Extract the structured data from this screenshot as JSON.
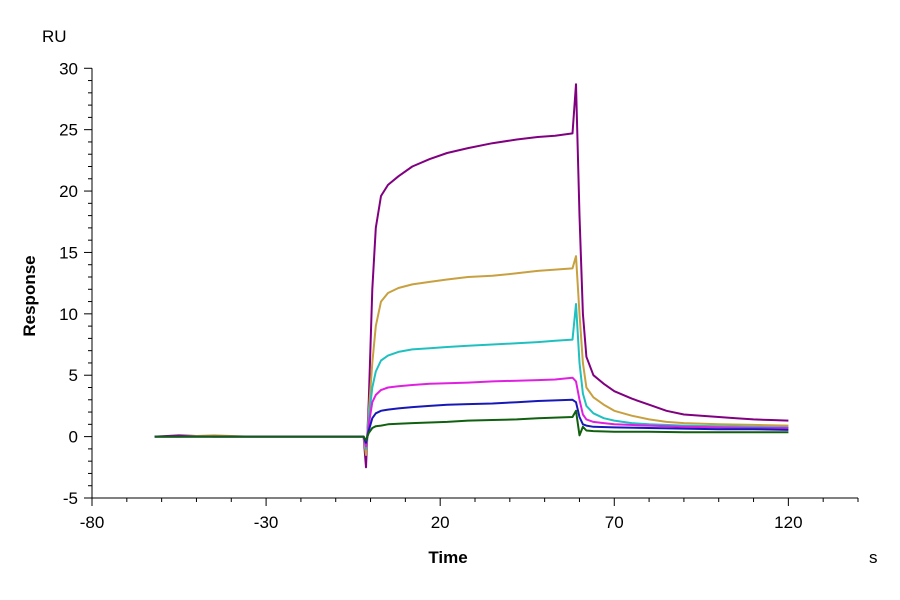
{
  "chart_data": {
    "type": "line",
    "title": "",
    "xlabel": "Time",
    "ylabel": "Response",
    "x_unit": "s",
    "y_unit": "RU",
    "xlim": [
      -80,
      140
    ],
    "ylim": [
      -5,
      31
    ],
    "x_ticks": [
      -80,
      -30,
      20,
      70,
      120
    ],
    "y_ticks": [
      -5,
      0,
      5,
      10,
      15,
      20,
      25,
      30
    ],
    "grid": false,
    "legend": "none",
    "series": [
      {
        "color": "#800080",
        "points": [
          [
            -62,
            0
          ],
          [
            -55,
            0.1
          ],
          [
            -45,
            0
          ],
          [
            -35,
            0
          ],
          [
            -25,
            0
          ],
          [
            -15,
            0
          ],
          [
            -6,
            0
          ],
          [
            -2,
            0
          ],
          [
            -1.3,
            -2.5
          ],
          [
            -0.5,
            3
          ],
          [
            0.5,
            12
          ],
          [
            1.5,
            17
          ],
          [
            3,
            19.6
          ],
          [
            5,
            20.5
          ],
          [
            8,
            21.2
          ],
          [
            12,
            22
          ],
          [
            17,
            22.6
          ],
          [
            22,
            23.1
          ],
          [
            28,
            23.5
          ],
          [
            35,
            23.9
          ],
          [
            42,
            24.2
          ],
          [
            48,
            24.4
          ],
          [
            53,
            24.5
          ],
          [
            58,
            24.7
          ],
          [
            59,
            28.7
          ],
          [
            60,
            18
          ],
          [
            61,
            10
          ],
          [
            62,
            6.5
          ],
          [
            64,
            5
          ],
          [
            67,
            4.3
          ],
          [
            70,
            3.7
          ],
          [
            75,
            3.1
          ],
          [
            80,
            2.6
          ],
          [
            85,
            2.1
          ],
          [
            90,
            1.8
          ],
          [
            95,
            1.7
          ],
          [
            100,
            1.6
          ],
          [
            105,
            1.5
          ],
          [
            110,
            1.4
          ],
          [
            115,
            1.35
          ],
          [
            120,
            1.3
          ]
        ]
      },
      {
        "color": "#C8A040",
        "points": [
          [
            -62,
            0
          ],
          [
            -55,
            0
          ],
          [
            -45,
            0.1
          ],
          [
            -35,
            0
          ],
          [
            -25,
            0
          ],
          [
            -15,
            0
          ],
          [
            -6,
            0
          ],
          [
            -2,
            0
          ],
          [
            -1.3,
            -1.5
          ],
          [
            -0.5,
            2
          ],
          [
            0.5,
            6
          ],
          [
            1.5,
            9
          ],
          [
            3,
            11
          ],
          [
            5,
            11.7
          ],
          [
            8,
            12.1
          ],
          [
            12,
            12.4
          ],
          [
            17,
            12.6
          ],
          [
            22,
            12.8
          ],
          [
            28,
            13
          ],
          [
            35,
            13.1
          ],
          [
            42,
            13.3
          ],
          [
            48,
            13.5
          ],
          [
            53,
            13.6
          ],
          [
            58,
            13.7
          ],
          [
            59,
            14.7
          ],
          [
            60,
            10
          ],
          [
            61,
            6
          ],
          [
            62,
            4
          ],
          [
            64,
            3.2
          ],
          [
            67,
            2.6
          ],
          [
            70,
            2.1
          ],
          [
            75,
            1.7
          ],
          [
            80,
            1.4
          ],
          [
            85,
            1.2
          ],
          [
            90,
            1.1
          ],
          [
            100,
            1
          ],
          [
            110,
            0.95
          ],
          [
            120,
            0.9
          ]
        ]
      },
      {
        "color": "#20C0C0",
        "points": [
          [
            -62,
            0
          ],
          [
            -55,
            0
          ],
          [
            -45,
            0
          ],
          [
            -35,
            0
          ],
          [
            -25,
            0
          ],
          [
            -15,
            0
          ],
          [
            -6,
            0
          ],
          [
            -2,
            0
          ],
          [
            -1.3,
            -1
          ],
          [
            -0.5,
            1.5
          ],
          [
            0.5,
            4
          ],
          [
            1.5,
            5.3
          ],
          [
            3,
            6.2
          ],
          [
            5,
            6.6
          ],
          [
            8,
            6.9
          ],
          [
            12,
            7.1
          ],
          [
            17,
            7.2
          ],
          [
            22,
            7.3
          ],
          [
            28,
            7.4
          ],
          [
            35,
            7.5
          ],
          [
            42,
            7.6
          ],
          [
            48,
            7.7
          ],
          [
            53,
            7.8
          ],
          [
            58,
            7.9
          ],
          [
            59,
            10.8
          ],
          [
            60,
            6
          ],
          [
            61,
            3.5
          ],
          [
            62,
            2.5
          ],
          [
            64,
            1.9
          ],
          [
            67,
            1.5
          ],
          [
            70,
            1.3
          ],
          [
            75,
            1.1
          ],
          [
            80,
            1
          ],
          [
            90,
            0.9
          ],
          [
            100,
            0.85
          ],
          [
            110,
            0.8
          ],
          [
            120,
            0.75
          ]
        ]
      },
      {
        "color": "#E020E0",
        "points": [
          [
            -62,
            0
          ],
          [
            -55,
            0
          ],
          [
            -45,
            0
          ],
          [
            -35,
            0
          ],
          [
            -25,
            0
          ],
          [
            -15,
            0
          ],
          [
            -6,
            0
          ],
          [
            -2,
            0
          ],
          [
            -1.3,
            -0.8
          ],
          [
            -0.5,
            1
          ],
          [
            0.5,
            2.8
          ],
          [
            1.5,
            3.4
          ],
          [
            3,
            3.8
          ],
          [
            5,
            4
          ],
          [
            8,
            4.1
          ],
          [
            12,
            4.2
          ],
          [
            17,
            4.3
          ],
          [
            22,
            4.35
          ],
          [
            28,
            4.4
          ],
          [
            35,
            4.5
          ],
          [
            42,
            4.55
          ],
          [
            48,
            4.6
          ],
          [
            53,
            4.65
          ],
          [
            58,
            4.8
          ],
          [
            59,
            4.5
          ],
          [
            60,
            3
          ],
          [
            61,
            1.8
          ],
          [
            62,
            1.4
          ],
          [
            64,
            1.2
          ],
          [
            67,
            1.1
          ],
          [
            70,
            1
          ],
          [
            80,
            0.9
          ],
          [
            90,
            0.8
          ],
          [
            100,
            0.75
          ],
          [
            110,
            0.7
          ],
          [
            120,
            0.7
          ]
        ]
      },
      {
        "color": "#1818B8",
        "points": [
          [
            -62,
            0
          ],
          [
            -55,
            0
          ],
          [
            -45,
            0
          ],
          [
            -35,
            0
          ],
          [
            -25,
            0
          ],
          [
            -15,
            0
          ],
          [
            -6,
            0
          ],
          [
            -2,
            0
          ],
          [
            -1.3,
            -0.5
          ],
          [
            -0.5,
            0.5
          ],
          [
            0.5,
            1.5
          ],
          [
            1.5,
            1.9
          ],
          [
            3,
            2.1
          ],
          [
            5,
            2.2
          ],
          [
            8,
            2.3
          ],
          [
            12,
            2.4
          ],
          [
            17,
            2.5
          ],
          [
            22,
            2.6
          ],
          [
            28,
            2.65
          ],
          [
            35,
            2.7
          ],
          [
            42,
            2.8
          ],
          [
            48,
            2.9
          ],
          [
            53,
            2.95
          ],
          [
            58,
            3
          ],
          [
            59,
            2.8
          ],
          [
            60,
            1.6
          ],
          [
            61,
            1
          ],
          [
            62,
            0.9
          ],
          [
            64,
            0.8
          ],
          [
            70,
            0.75
          ],
          [
            80,
            0.7
          ],
          [
            90,
            0.65
          ],
          [
            100,
            0.6
          ],
          [
            110,
            0.6
          ],
          [
            120,
            0.55
          ]
        ]
      },
      {
        "color": "#106010",
        "points": [
          [
            -62,
            0
          ],
          [
            -55,
            0
          ],
          [
            -45,
            0
          ],
          [
            -35,
            0
          ],
          [
            -25,
            0
          ],
          [
            -15,
            0
          ],
          [
            -6,
            0
          ],
          [
            -2,
            0
          ],
          [
            -1.3,
            -0.3
          ],
          [
            -0.5,
            0.3
          ],
          [
            0.5,
            0.7
          ],
          [
            1.5,
            0.85
          ],
          [
            3,
            0.9
          ],
          [
            5,
            1
          ],
          [
            8,
            1.05
          ],
          [
            12,
            1.1
          ],
          [
            17,
            1.15
          ],
          [
            22,
            1.2
          ],
          [
            28,
            1.3
          ],
          [
            35,
            1.35
          ],
          [
            42,
            1.4
          ],
          [
            48,
            1.5
          ],
          [
            53,
            1.55
          ],
          [
            58,
            1.6
          ],
          [
            59,
            2.1
          ],
          [
            60,
            0.1
          ],
          [
            61,
            0.8
          ],
          [
            62,
            0.5
          ],
          [
            64,
            0.45
          ],
          [
            70,
            0.4
          ],
          [
            80,
            0.4
          ],
          [
            90,
            0.35
          ],
          [
            100,
            0.35
          ],
          [
            110,
            0.35
          ],
          [
            120,
            0.35
          ]
        ]
      }
    ]
  }
}
